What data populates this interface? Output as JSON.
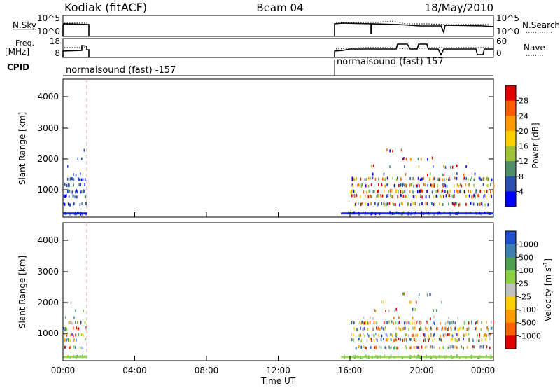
{
  "header": {
    "station": "Kodiak (fitACF)",
    "beam": "Beam 04",
    "date": "18/May/2010"
  },
  "upper_panels": {
    "nsky_label": "N.Sky",
    "nsky_ticks": [
      "10^5",
      "10^0"
    ],
    "nsearch_label": "N.Search",
    "nsearch_ticks": [
      "10^5",
      "10^0"
    ],
    "freq_label_line1": "Freq.",
    "freq_label_line2": "[MHz]",
    "freq_ticks": [
      "18",
      "8"
    ],
    "nave_label": "Nave",
    "nave_ticks": [
      "60",
      "0"
    ],
    "cpid_label": "CPID",
    "cpid_segments": [
      {
        "label": "normalsound (fast) -157",
        "start_hour": 0.0,
        "end_hour": 1.35
      },
      {
        "label": "normalsound (fast) 157",
        "start_hour": 15.5,
        "end_hour": 24.0
      }
    ]
  },
  "power_panel": {
    "ylabel": "Slant Range [km]",
    "ytick_labels": [
      "1000",
      "2000",
      "3000",
      "4000"
    ],
    "colorbar_label": "Power [dB]",
    "colorbar_ticks": [
      "4",
      "8",
      "12",
      "16",
      "20",
      "24",
      "28"
    ],
    "colors": [
      "#0000ff",
      "#2a4fb0",
      "#4f8f6a",
      "#9ec23a",
      "#ffd000",
      "#ff9a00",
      "#ff5a00",
      "#e00000"
    ]
  },
  "velocity_panel": {
    "ylabel": "Slant Range [km]",
    "ytick_labels": [
      "1000",
      "2000",
      "3000",
      "4000"
    ],
    "colorbar_label": "Velocity [m s^-1]",
    "colorbar_ticks": [
      "1000",
      "500",
      "100",
      "25",
      "-25",
      "-100",
      "-500",
      "-1000"
    ],
    "colors": [
      "#2050d0",
      "#3d7fb0",
      "#4fa050",
      "#8ad040",
      "#c0c0c0",
      "#ffd000",
      "#ff9a00",
      "#ff6000",
      "#e00000"
    ]
  },
  "x_axis": {
    "xlabel": "Time UT",
    "tick_labels": [
      "00:00",
      "04:00",
      "08:00",
      "12:00",
      "16:00",
      "20:00",
      "00:00"
    ]
  },
  "chart_data": {
    "type": "heatmap",
    "title": "Kodiak (fitACF)",
    "subtitle": "Beam 04",
    "date": "18/May/2010",
    "xlabel": "Time UT",
    "ylabel": "Slant Range [km]",
    "xlim_hours": [
      0,
      24
    ],
    "ylim_km": [
      180,
      4600
    ],
    "active_intervals_hours": [
      [
        0.0,
        1.35
      ],
      [
        15.5,
        24.0
      ]
    ],
    "panels": [
      {
        "quantity": "Power [dB]",
        "color_scale": [
          0,
          30
        ],
        "colorbar_ticks": [
          4,
          8,
          12,
          16,
          20,
          24,
          28
        ]
      },
      {
        "quantity": "Velocity [m s^-1]",
        "colorbar_ticks": [
          1000,
          500,
          100,
          25,
          -25,
          -100,
          -500,
          -1000
        ]
      }
    ],
    "echo_bands_km": [
      {
        "range_km": 300,
        "hours": [
          [
            0.0,
            1.3
          ],
          [
            15.6,
            24.0
          ]
        ]
      },
      {
        "range_km": 600,
        "hours": [
          [
            0.0,
            1.3
          ],
          [
            16.2,
            23.8
          ]
        ]
      },
      {
        "range_km": 850,
        "hours": [
          [
            0.0,
            1.3
          ],
          [
            16.0,
            24.0
          ]
        ]
      },
      {
        "range_km": 1000,
        "hours": [
          [
            0.0,
            1.3
          ],
          [
            16.0,
            24.0
          ]
        ]
      },
      {
        "range_km": 1200,
        "hours": [
          [
            0.0,
            1.3
          ],
          [
            16.0,
            24.0
          ]
        ]
      },
      {
        "range_km": 1400,
        "hours": [
          [
            0.0,
            1.3
          ],
          [
            16.0,
            24.0
          ]
        ]
      },
      {
        "range_km": 1550,
        "hours": [
          [
            0.1,
            1.3
          ],
          [
            16.5,
            23.0
          ]
        ]
      },
      {
        "range_km": 1800,
        "hours": [
          [
            0.2,
            1.3
          ],
          [
            17.0,
            22.5
          ]
        ]
      },
      {
        "range_km": 2050,
        "hours": [
          [
            0.3,
            1.3
          ],
          [
            17.5,
            21.5
          ]
        ]
      },
      {
        "range_km": 2300,
        "hours": [
          [
            1.0,
            1.3
          ],
          [
            18.0,
            20.5
          ]
        ]
      }
    ]
  }
}
